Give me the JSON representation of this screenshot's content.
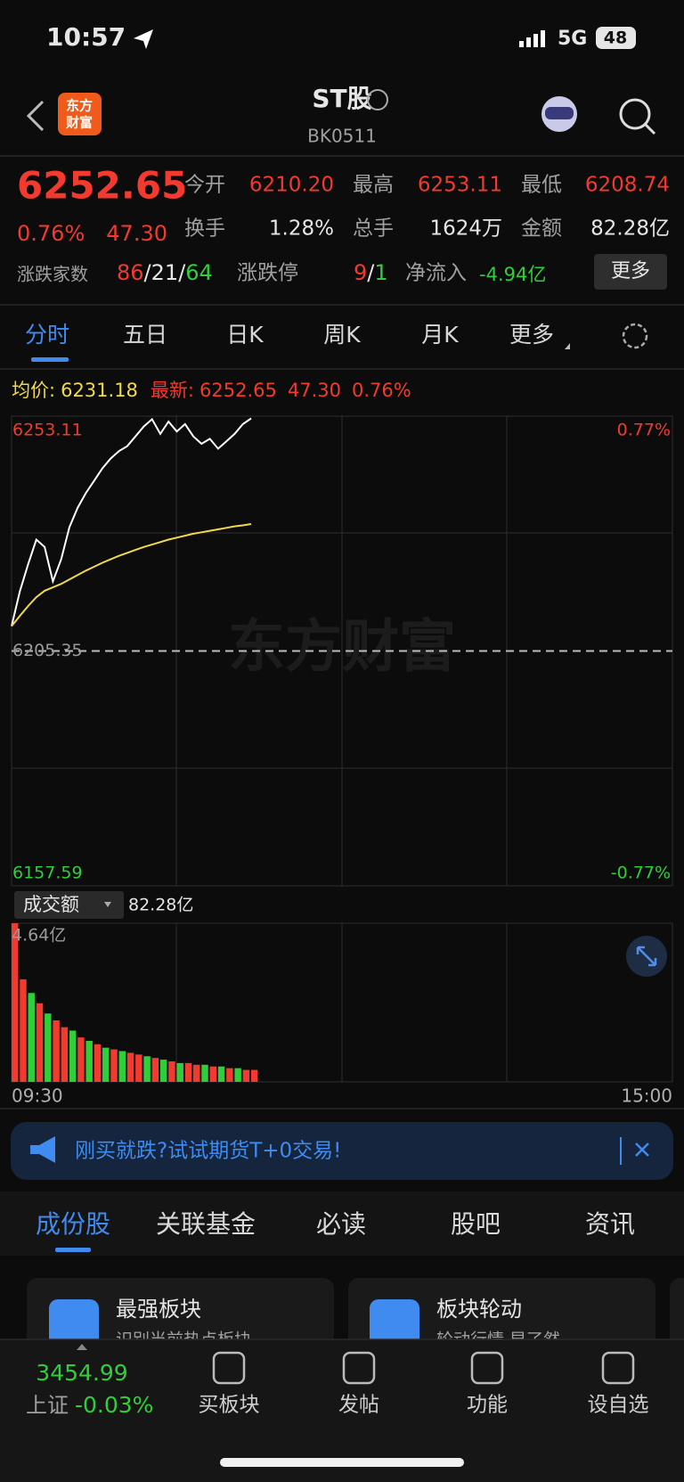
{
  "status_bar": {
    "time": "10:57",
    "network": "5G",
    "battery": "48"
  },
  "header": {
    "title": "ST股",
    "code": "BK0511"
  },
  "quote": {
    "price": "6252.65",
    "change_pct": "0.76%",
    "change": "47.30",
    "stats": [
      {
        "label": "今开",
        "value": "6210.20"
      },
      {
        "label": "最高",
        "value": "6253.11"
      },
      {
        "label": "最低",
        "value": "6208.74"
      },
      {
        "label": "换手",
        "value": "1.28%"
      },
      {
        "label": "总手",
        "value": "1624万"
      },
      {
        "label": "金额",
        "value": "82.28亿"
      }
    ],
    "breadth": {
      "label": "涨跌家数",
      "up": "86",
      "flat": "21",
      "down": "64",
      "separator": "/"
    },
    "limit": {
      "label": "涨跌停",
      "up": "9",
      "down": "1",
      "separator": "/"
    },
    "net_inflow": {
      "label": "净流入",
      "value": "-4.94亿"
    },
    "more_button": "更多"
  },
  "tabs": [
    "分时",
    "五日",
    "日K",
    "周K",
    "月K",
    "更多"
  ],
  "intraday": {
    "avg_label": "均价:",
    "avg": "6231.18",
    "latest_label": "最新:",
    "latest": "6252.65",
    "change": "47.30",
    "change_pct": "0.76%"
  },
  "volume_header": {
    "label": "成交额",
    "value": "82.28亿"
  },
  "chart_data": [
    {
      "type": "line",
      "x": [
        0,
        3,
        6,
        9,
        12,
        15,
        18,
        21,
        24,
        27,
        30,
        33,
        36,
        39,
        42,
        45,
        48,
        51,
        54,
        57,
        60,
        63,
        66,
        69,
        72,
        75,
        78,
        81,
        84,
        87
      ],
      "series": [
        {
          "color": "#ffffff",
          "values": [
            6210.4,
            6217.5,
            6223.0,
            6228.0,
            6226.5,
            6219.5,
            6224.0,
            6230.5,
            6234.5,
            6237.5,
            6240.0,
            6242.5,
            6244.5,
            6246.0,
            6247.0,
            6249.0,
            6251.0,
            6252.5,
            6249.5,
            6252.0,
            6250.0,
            6251.5,
            6249.0,
            6247.5,
            6248.5,
            6246.5,
            6248.0,
            6249.5,
            6251.5,
            6252.65
          ]
        },
        {
          "color": "#f2d94a",
          "values": [
            6210.4,
            6212.5,
            6214.5,
            6216.3,
            6217.6,
            6218.3,
            6219.0,
            6219.9,
            6220.8,
            6221.7,
            6222.5,
            6223.3,
            6224.0,
            6224.7,
            6225.3,
            6225.9,
            6226.5,
            6227.0,
            6227.5,
            6228.0,
            6228.4,
            6228.8,
            6229.2,
            6229.5,
            6229.8,
            6230.1,
            6230.4,
            6230.7,
            6230.9,
            6231.18
          ]
        }
      ],
      "xlim": [
        0,
        240
      ],
      "ylim": [
        6157.59,
        6253.11
      ],
      "yticks": [
        6157.59,
        6205.35,
        6253.11
      ],
      "y2lim": [
        -0.77,
        0.77
      ],
      "y2ticks": [
        {
          "value": -0.77,
          "label": "-0.77%"
        },
        {
          "value": 0.77,
          "label": "0.77%"
        }
      ]
    },
    {
      "type": "bar",
      "x": [
        0,
        3,
        6,
        9,
        12,
        15,
        18,
        21,
        24,
        27,
        30,
        33,
        36,
        39,
        42,
        45,
        48,
        51,
        54,
        57,
        60,
        63,
        66,
        69,
        72,
        75,
        78,
        81,
        84,
        87
      ],
      "values": [
        4.64,
        3.0,
        2.6,
        2.3,
        2.0,
        1.8,
        1.6,
        1.5,
        1.3,
        1.2,
        1.1,
        1.0,
        0.95,
        0.9,
        0.85,
        0.8,
        0.75,
        0.7,
        0.65,
        0.6,
        0.55,
        0.55,
        0.5,
        0.5,
        0.45,
        0.45,
        0.4,
        0.4,
        0.35,
        0.35
      ],
      "colors": [
        "#f23a2e",
        "#f23a2e",
        "#2fcf3a",
        "#f23a2e",
        "#2fcf3a",
        "#f23a2e",
        "#f23a2e",
        "#2fcf3a",
        "#f23a2e",
        "#2fcf3a",
        "#f23a2e",
        "#2fcf3a",
        "#f23a2e",
        "#2fcf3a",
        "#f23a2e",
        "#f23a2e",
        "#2fcf3a",
        "#f23a2e",
        "#2fcf3a",
        "#f23a2e",
        "#2fcf3a",
        "#f23a2e",
        "#f23a2e",
        "#2fcf3a",
        "#f23a2e",
        "#2fcf3a",
        "#f23a2e",
        "#2fcf3a",
        "#f23a2e",
        "#f23a2e"
      ],
      "xlim": [
        0,
        240
      ],
      "ylim": [
        0,
        4.64
      ],
      "yticks": [
        {
          "value": 4.64,
          "label": "4.64亿"
        }
      ],
      "xticks": [
        {
          "value": 0,
          "label": "09:30"
        },
        {
          "value": 240,
          "label": "15:00"
        }
      ]
    }
  ],
  "banner": "刚买就跌?试试期货T+0交易!",
  "section_tabs": [
    "成份股",
    "关联基金",
    "必读",
    "股吧",
    "资讯"
  ],
  "cards": [
    {
      "title": "最强板块",
      "subtitle": "识别当前热点板块"
    },
    {
      "title": "板块轮动",
      "subtitle": "轮动行情,早了然"
    }
  ],
  "bottom_nav": {
    "index_value": "3454.99",
    "index_name": "上证",
    "index_change": "-0.03%",
    "items": [
      "买板块",
      "发帖",
      "功能",
      "设自选"
    ]
  }
}
